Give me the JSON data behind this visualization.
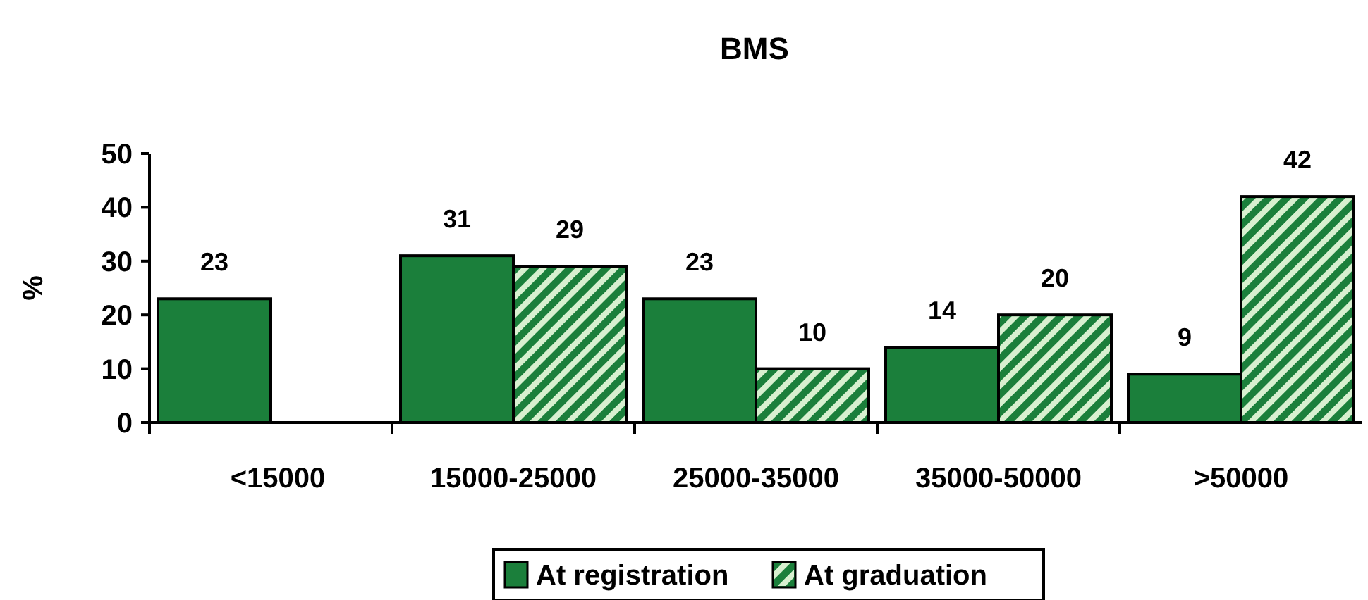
{
  "chart_data": {
    "type": "bar",
    "title": "BMS",
    "ylabel": "%",
    "categories": [
      "<15000",
      "15000-25000",
      "25000-35000",
      "35000-50000",
      ">50000"
    ],
    "series": [
      {
        "name": "At registration",
        "color": "#1b7f3b",
        "values": [
          23,
          31,
          23,
          14,
          9
        ]
      },
      {
        "name": "At graduation",
        "color": "#1b7f3b",
        "values": [
          null,
          29,
          10,
          20,
          42
        ]
      }
    ],
    "ylim": [
      0,
      50
    ],
    "yticks": [
      0,
      10,
      20,
      30,
      40,
      50
    ],
    "grid": false,
    "legend": "bottom",
    "data_labels": true
  }
}
